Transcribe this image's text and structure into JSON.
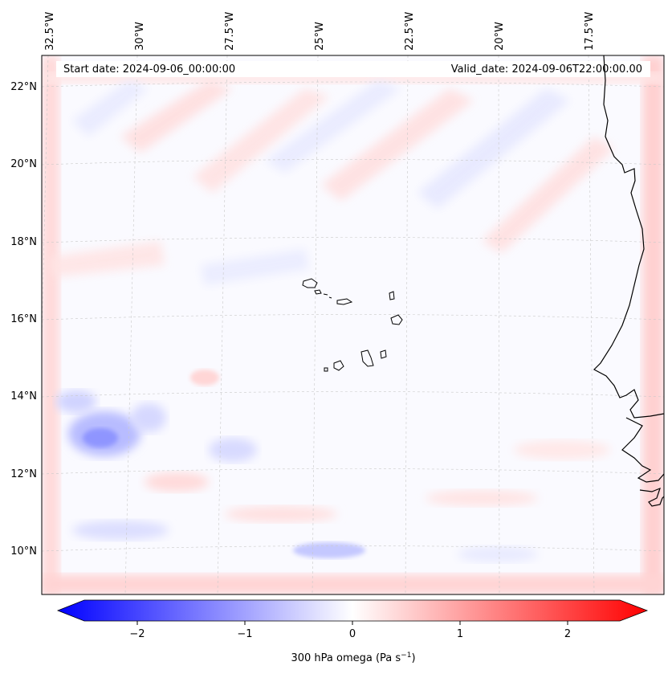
{
  "header": {
    "start_label": "Start date: 2024-09-06_00:00:00",
    "valid_label": "Valid_date: 2024-09-06T22:00:00.00"
  },
  "map": {
    "lon_labels": [
      "32.5°W",
      "30°W",
      "27.5°W",
      "25°W",
      "22.5°W",
      "20°W",
      "17.5°W"
    ],
    "lat_labels": [
      "22°N",
      "20°N",
      "18°N",
      "16°N",
      "14°N",
      "12°N",
      "10°N"
    ]
  },
  "colorbar": {
    "ticks": [
      "−2",
      "−1",
      "0",
      "1",
      "2"
    ],
    "label": "300 hPa omega (Pa s",
    "label_exp": "−1",
    "label_end": ")",
    "low_color": "#0000ff",
    "mid_color": "#ffffff",
    "high_color": "#ff0000"
  }
}
